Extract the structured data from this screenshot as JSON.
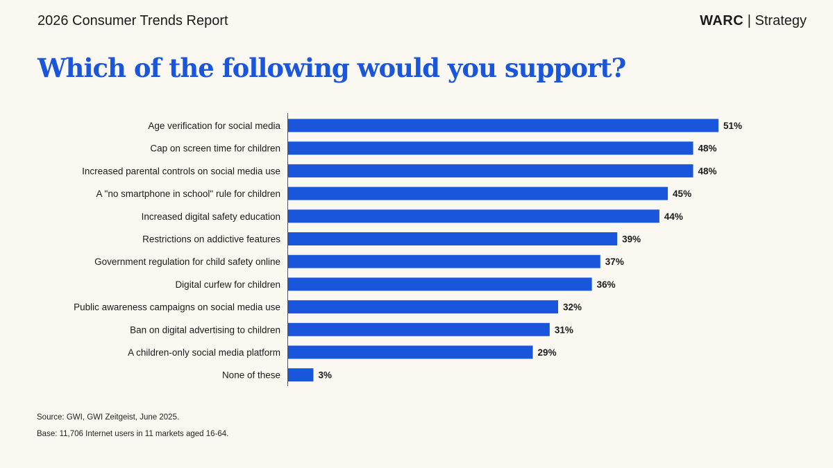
{
  "header": {
    "report": "2026 Consumer Trends Report",
    "brand_bold": "WARC",
    "brand_rest": "Strategy"
  },
  "chart_data": {
    "type": "bar",
    "orientation": "horizontal",
    "title": "Which of the following would you support?",
    "categories": [
      "Age verification for social media",
      "Cap on screen time for children",
      "Increased parental controls on social media use",
      "A \"no smartphone in school\" rule for children",
      "Increased digital safety education",
      "Restrictions on addictive features",
      "Government regulation for child safety online",
      "Digital curfew for children",
      "Public awareness campaigns on social media use",
      "Ban on digital advertising to children",
      "A children-only social media platform",
      "None of these"
    ],
    "values": [
      51,
      48,
      48,
      45,
      44,
      39,
      37,
      36,
      32,
      31,
      29,
      3
    ],
    "labels": [
      "51%",
      "48%",
      "48%",
      "45%",
      "44%",
      "39%",
      "37%",
      "36%",
      "32%",
      "31%",
      "29%",
      "3%"
    ],
    "unit": "%",
    "grid": false,
    "bar_color": "#1a56db"
  },
  "footer": {
    "source": "Source: GWI, GWI Zeitgeist, June 2025.",
    "base": "Base: 11,706 Internet users in 11 markets aged 16-64."
  }
}
